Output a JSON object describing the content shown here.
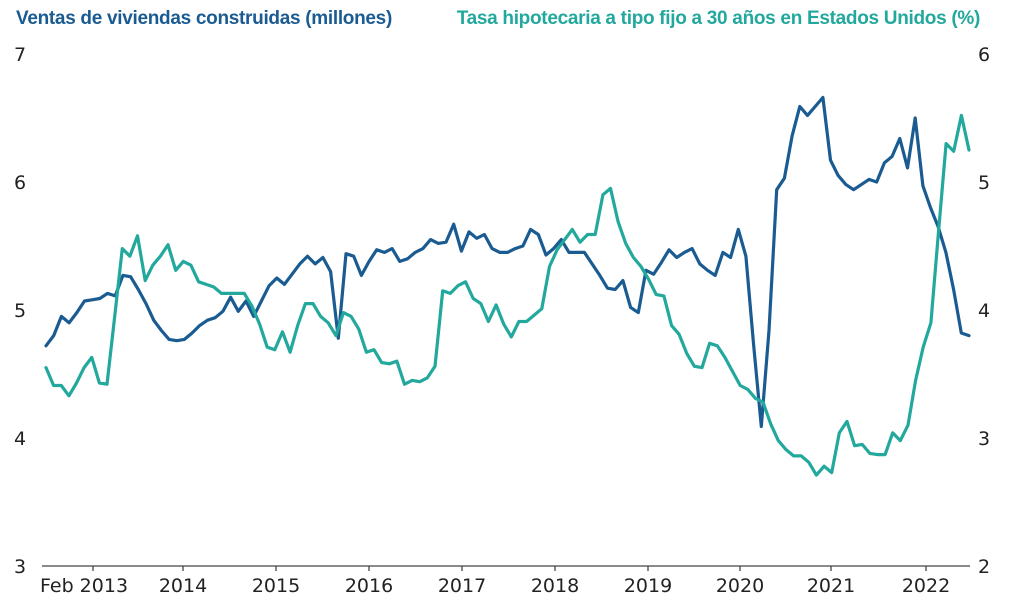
{
  "chart_data": {
    "type": "line",
    "title_left": "Ventas de viviendas construidas (millones)",
    "title_right": "Tasa hipotecaria a tipo fijo a 30 años en Estados Unidos (%)",
    "x_start": "Feb 2013",
    "x_frequency": "monthly",
    "x_ticks": [
      "Feb 2013",
      "2014",
      "2015",
      "2016",
      "2017",
      "2018",
      "2019",
      "2020",
      "2021",
      "2022"
    ],
    "y_left": {
      "range": [
        3,
        7
      ],
      "ticks": [
        "3",
        "4",
        "5",
        "6",
        "7"
      ]
    },
    "y_right": {
      "range": [
        2,
        6
      ],
      "ticks": [
        "2",
        "3",
        "4",
        "5",
        "6"
      ]
    },
    "grid": false,
    "legend": "none (axis titles colored by series)",
    "series": [
      {
        "name": "Ventas de viviendas construidas (millones)",
        "axis": "left",
        "color": "#1a5b92",
        "values": [
          4.72,
          4.8,
          4.95,
          4.9,
          4.98,
          5.07,
          5.08,
          5.09,
          5.13,
          5.11,
          5.27,
          5.26,
          5.16,
          5.05,
          4.92,
          4.84,
          4.77,
          4.76,
          4.77,
          4.82,
          4.88,
          4.92,
          4.94,
          4.99,
          5.1,
          4.99,
          5.07,
          4.95,
          5.07,
          5.19,
          5.25,
          5.2,
          5.28,
          5.36,
          5.42,
          5.36,
          5.41,
          5.3,
          4.78,
          5.44,
          5.42,
          5.27,
          5.38,
          5.47,
          5.45,
          5.48,
          5.38,
          5.4,
          5.45,
          5.48,
          5.55,
          5.52,
          5.53,
          5.67,
          5.46,
          5.61,
          5.56,
          5.59,
          5.48,
          5.45,
          5.45,
          5.48,
          5.5,
          5.63,
          5.59,
          5.43,
          5.48,
          5.55,
          5.45,
          5.45,
          5.45,
          5.36,
          5.27,
          5.17,
          5.16,
          5.23,
          5.02,
          4.98,
          5.31,
          5.28,
          5.37,
          5.47,
          5.41,
          5.45,
          5.48,
          5.36,
          5.31,
          5.27,
          5.45,
          5.41,
          5.63,
          5.42,
          4.73,
          4.09,
          4.84,
          5.94,
          6.03,
          6.36,
          6.59,
          6.52,
          6.59,
          6.66,
          6.17,
          6.05,
          5.98,
          5.94,
          5.98,
          6.02,
          6.0,
          6.15,
          6.2,
          6.34,
          6.11,
          6.5,
          5.97,
          5.8,
          5.65,
          5.45,
          5.16,
          4.82,
          4.8
        ]
      },
      {
        "name": "Tasa hipotecaria a tipo fijo a 30 años en Estados Unidos (%)",
        "axis": "right",
        "color": "#22a89c",
        "values": [
          3.55,
          3.41,
          3.41,
          3.33,
          3.43,
          3.55,
          3.63,
          3.43,
          3.42,
          3.95,
          4.48,
          4.42,
          4.58,
          4.23,
          4.35,
          4.42,
          4.51,
          4.31,
          4.38,
          4.35,
          4.22,
          4.2,
          4.18,
          4.13,
          4.13,
          4.13,
          4.13,
          4.03,
          3.89,
          3.71,
          3.69,
          3.83,
          3.67,
          3.88,
          4.05,
          4.05,
          3.95,
          3.9,
          3.8,
          3.98,
          3.95,
          3.85,
          3.67,
          3.69,
          3.59,
          3.58,
          3.6,
          3.42,
          3.45,
          3.44,
          3.47,
          3.56,
          4.15,
          4.13,
          4.19,
          4.22,
          4.09,
          4.05,
          3.91,
          4.04,
          3.89,
          3.79,
          3.91,
          3.91,
          3.96,
          4.01,
          4.34,
          4.47,
          4.55,
          4.63,
          4.53,
          4.59,
          4.59,
          4.9,
          4.95,
          4.69,
          4.52,
          4.41,
          4.34,
          4.24,
          4.12,
          4.11,
          3.88,
          3.81,
          3.66,
          3.56,
          3.55,
          3.74,
          3.72,
          3.63,
          3.52,
          3.41,
          3.38,
          3.31,
          3.28,
          3.11,
          2.98,
          2.91,
          2.86,
          2.86,
          2.81,
          2.71,
          2.78,
          2.73,
          3.04,
          3.13,
          2.94,
          2.95,
          2.88,
          2.87,
          2.87,
          3.04,
          2.98,
          3.1,
          3.45,
          3.71,
          3.9,
          4.61,
          5.3,
          5.24,
          5.52,
          5.25
        ]
      }
    ]
  }
}
